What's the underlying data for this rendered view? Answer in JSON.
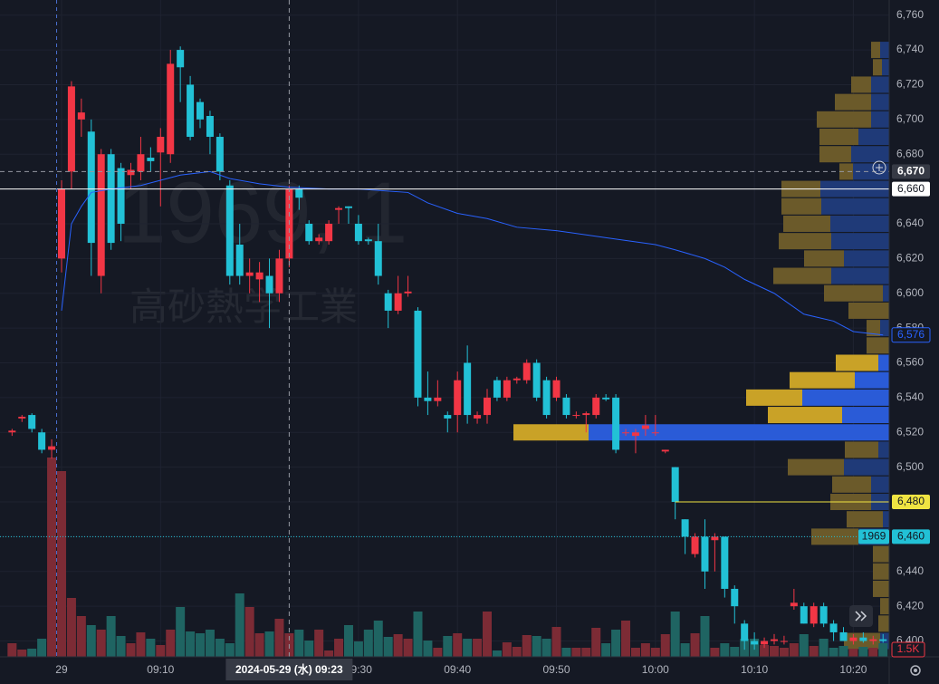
{
  "chart_data": {
    "type": "candlestick",
    "watermark_symbol": "1969, 1",
    "watermark_name": "高砂熱学工業",
    "x": [
      -5,
      -4,
      -3,
      -2,
      -1,
      0,
      1,
      2,
      3,
      4,
      5,
      6,
      7,
      8,
      9,
      10,
      11,
      12,
      13,
      14,
      15,
      16,
      17,
      18,
      19,
      20,
      21,
      22,
      23,
      24,
      25,
      26,
      27,
      28,
      29,
      30,
      31,
      32,
      33,
      34,
      35,
      36,
      37,
      38,
      39,
      40,
      41,
      42,
      43,
      44,
      45,
      46,
      47,
      48,
      49,
      50,
      51,
      52,
      53,
      54,
      55,
      56,
      57,
      58,
      59,
      60,
      61,
      62,
      63,
      64,
      65,
      66,
      67,
      68,
      69,
      70,
      71,
      72,
      73,
      74,
      75,
      76,
      77,
      78,
      79,
      80,
      81,
      82,
      83
    ],
    "open": [
      6520,
      6528,
      6530,
      6520,
      6510,
      6620,
      6670,
      6700,
      6693,
      6610,
      6680,
      6672,
      6668,
      6670,
      6678,
      6681,
      6680,
      6740,
      6720,
      6710,
      6702,
      6690,
      6662,
      6628,
      6610,
      6608,
      6610,
      6600,
      6620,
      6660,
      6640,
      6630,
      6630,
      6648,
      6650,
      6640,
      6631,
      6630,
      6600,
      6590,
      6600,
      6590,
      6540,
      6538,
      6530,
      6530,
      6560,
      6528,
      6530,
      6550,
      6540,
      6550,
      6550,
      6560,
      6550,
      6540,
      6540,
      6530,
      6530,
      6530,
      6540,
      6540,
      6520,
      6518,
      6522,
      6520,
      6509,
      6500,
      6470,
      6450,
      6460,
      6458,
      6460,
      6430,
      6410,
      6400,
      6398,
      6400,
      6400,
      6420,
      6420,
      6410,
      6420,
      6410,
      6405,
      6400,
      6402,
      6400,
      6401
    ],
    "high": [
      6522,
      6530,
      6531,
      6522,
      6516,
      6665,
      6722,
      6712,
      6700,
      6683,
      6683,
      6675,
      6675,
      6690,
      6684,
      6695,
      6740,
      6742,
      6725,
      6712,
      6705,
      6692,
      6665,
      6640,
      6620,
      6618,
      6620,
      6625,
      6662,
      6662,
      6642,
      6634,
      6642,
      6650,
      6650,
      6645,
      6632,
      6640,
      6602,
      6610,
      6610,
      6592,
      6555,
      6550,
      6532,
      6555,
      6570,
      6532,
      6545,
      6552,
      6552,
      6552,
      6562,
      6562,
      6552,
      6552,
      6542,
      6532,
      6532,
      6542,
      6542,
      6542,
      6522,
      6522,
      6530,
      6530,
      6510,
      6500,
      6470,
      6462,
      6470,
      6462,
      6460,
      6432,
      6412,
      6405,
      6402,
      6404,
      6403,
      6430,
      6422,
      6422,
      6422,
      6412,
      6408,
      6404,
      6405,
      6403,
      6404
    ],
    "low": [
      6518,
      6526,
      6520,
      6508,
      6505,
      6612,
      6660,
      6690,
      6610,
      6600,
      6625,
      6630,
      6660,
      6665,
      6670,
      6650,
      6675,
      6710,
      6688,
      6695,
      6680,
      6665,
      6605,
      6605,
      6600,
      6595,
      6580,
      6595,
      6615,
      6648,
      6628,
      6628,
      6628,
      6640,
      6640,
      6628,
      6628,
      6605,
      6580,
      6588,
      6598,
      6535,
      6530,
      6535,
      6520,
      6520,
      6525,
      6525,
      6525,
      6538,
      6538,
      6548,
      6548,
      6538,
      6528,
      6538,
      6528,
      6528,
      6520,
      6528,
      6538,
      6508,
      6518,
      6508,
      6518,
      6518,
      6508,
      6470,
      6450,
      6448,
      6430,
      6440,
      6425,
      6410,
      6395,
      6395,
      6396,
      6398,
      6398,
      6418,
      6410,
      6408,
      6408,
      6400,
      6400,
      6398,
      6399,
      6398,
      6399
    ],
    "close": [
      6521,
      6529,
      6522,
      6510,
      6512,
      6660,
      6719,
      6704,
      6629,
      6680,
      6629,
      6640,
      6671,
      6680,
      6676,
      6690,
      6732,
      6730,
      6690,
      6700,
      6690,
      6670,
      6610,
      6610,
      6612,
      6612,
      6600,
      6620,
      6660,
      6655,
      6630,
      6632,
      6640,
      6649,
      6649,
      6630,
      6630,
      6610,
      6590,
      6600,
      6601,
      6540,
      6538,
      6540,
      6528,
      6550,
      6530,
      6530,
      6540,
      6540,
      6550,
      6551,
      6560,
      6540,
      6530,
      6550,
      6530,
      6530,
      6531,
      6540,
      6539,
      6510,
      6520,
      6520,
      6524,
      6520,
      6510,
      6480,
      6460,
      6460,
      6440,
      6460,
      6430,
      6420,
      6400,
      6398,
      6400,
      6401,
      6400,
      6422,
      6410,
      6420,
      6410,
      6405,
      6400,
      6402,
      6400,
      6401,
      6400
    ],
    "volume": [
      1500,
      800,
      900,
      2000,
      22000,
      20500,
      6500,
      4500,
      3500,
      3000,
      4500,
      2300,
      1500,
      2700,
      2000,
      1300,
      3000,
      5500,
      2800,
      2600,
      3000,
      2000,
      1500,
      7000,
      5500,
      2600,
      2800,
      4200,
      2600,
      3000,
      1800,
      3000,
      700,
      2000,
      3500,
      1700,
      3000,
      4000,
      2200,
      2500,
      2000,
      5000,
      1800,
      1000,
      2300,
      2600,
      2000,
      2000,
      5000,
      700,
      1600,
      1100,
      2400,
      2300,
      2000,
      3300,
      1000,
      1000,
      1000,
      3200,
      1500,
      3000,
      4000,
      1000,
      1500,
      1000,
      2500,
      5000,
      1500,
      2600,
      4500,
      1000,
      1500,
      1100,
      2000,
      2000,
      1300,
      1200,
      1000,
      1500,
      2500,
      1200,
      2000,
      1000,
      1200,
      900,
      1100,
      1000,
      1500
    ],
    "up_color": "#f23645",
    "down_color": "#22c1d6",
    "vol_up_color": "#7c2b35",
    "vol_down_color": "#1f6462",
    "xlim": [
      -6.22,
      83.62
    ],
    "ylim": [
      6390.9,
      6768.7
    ],
    "grid": true,
    "yticks": [
      {
        "value": 6400,
        "label": "6,400"
      },
      {
        "value": 6420,
        "label": "6,420"
      },
      {
        "value": 6440,
        "label": "6,440"
      },
      {
        "value": 6460,
        "label": "6,460"
      },
      {
        "value": 6480,
        "label": "6,480"
      },
      {
        "value": 6500,
        "label": "6,500"
      },
      {
        "value": 6520,
        "label": "6,520"
      },
      {
        "value": 6540,
        "label": "6,540"
      },
      {
        "value": 6560,
        "label": "6,560"
      },
      {
        "value": 6580,
        "label": "6,580"
      },
      {
        "value": 6600,
        "label": "6,600"
      },
      {
        "value": 6620,
        "label": "6,620"
      },
      {
        "value": 6640,
        "label": "6,640"
      },
      {
        "value": 6660,
        "label": "6,660"
      },
      {
        "value": 6680,
        "label": "6,680"
      },
      {
        "value": 6700,
        "label": "6,700"
      },
      {
        "value": 6720,
        "label": "6,720"
      },
      {
        "value": 6740,
        "label": "6,740"
      },
      {
        "value": 6760,
        "label": "6,760"
      }
    ],
    "xticks": [
      {
        "value": 0,
        "label": "29"
      },
      {
        "value": 10,
        "label": "09:10"
      },
      {
        "value": 30,
        "label": "09:30"
      },
      {
        "value": 40,
        "label": "09:40"
      },
      {
        "value": 50,
        "label": "09:50"
      },
      {
        "value": 60,
        "label": "10:00"
      },
      {
        "value": 70,
        "label": "10:10"
      },
      {
        "value": 80,
        "label": "10:20"
      }
    ],
    "vwap": {
      "color": "#2962ff",
      "x": [
        0,
        1,
        2,
        3,
        5,
        8,
        12,
        15,
        17,
        20,
        23,
        27,
        30,
        35,
        37,
        40,
        43,
        46,
        50,
        55,
        60,
        62,
        65,
        67,
        69,
        72,
        75,
        78,
        80,
        83
      ],
      "values": [
        6590,
        6640,
        6650,
        6658,
        6660,
        6662,
        6668,
        6670,
        6666,
        6663,
        6661,
        6660,
        6660,
        6658,
        6652,
        6646,
        6643,
        6638,
        6636,
        6632,
        6628,
        6625,
        6620,
        6615,
        6608,
        6600,
        6588,
        6584,
        6578,
        6576
      ],
      "label": {
        "value": 6576,
        "label": "6,576"
      }
    },
    "profile": {
      "prices": [
        6740,
        6730,
        6720,
        6710,
        6700,
        6690,
        6680,
        6670,
        6660,
        6650,
        6640,
        6630,
        6620,
        6610,
        6600,
        6590,
        6580,
        6570,
        6560,
        6550,
        6540,
        6530,
        6520,
        6510,
        6500,
        6490,
        6480,
        6470,
        6460,
        6450,
        6440,
        6430,
        6420,
        6410,
        6400
      ],
      "up_volume": [
        10,
        10,
        22,
        40,
        60,
        43,
        35,
        15,
        43,
        44,
        52,
        58,
        44,
        64,
        65,
        45,
        15,
        25,
        47,
        72,
        62,
        82,
        83,
        37,
        62,
        43,
        45,
        40,
        52,
        18,
        18,
        18,
        10,
        12,
        40
      ],
      "down_volume": [
        10,
        8,
        20,
        20,
        20,
        34,
        42,
        40,
        76,
        75,
        65,
        64,
        50,
        64,
        7,
        0,
        10,
        0,
        12,
        38,
        96,
        52,
        332,
        12,
        50,
        20,
        20,
        7,
        34,
        0,
        0,
        0,
        0,
        0,
        10
      ],
      "value_area": [
        6520,
        6560
      ],
      "up_color": "#c9a227",
      "down_color": "#2a5bd7",
      "up_dim_color": "#6b5a2a",
      "down_dim_color": "#1f3a78"
    },
    "lines": [
      {
        "value": 6660,
        "label": "6,660",
        "color": "#ffffff",
        "from": -6.22
      },
      {
        "value": 6480,
        "label": "6,480",
        "color": "#f0e442",
        "from": 62
      },
      {
        "value": 6460,
        "label": "6,460",
        "color": "#22c1d6",
        "from": -6.22,
        "badge": "1969"
      }
    ],
    "crosshair": {
      "x": 23,
      "y": 6670,
      "x_label": "2024-05-29 (水)   09:23",
      "y_label": "6,670"
    },
    "last_volume": {
      "value": 1500,
      "label": "1.5K"
    }
  }
}
